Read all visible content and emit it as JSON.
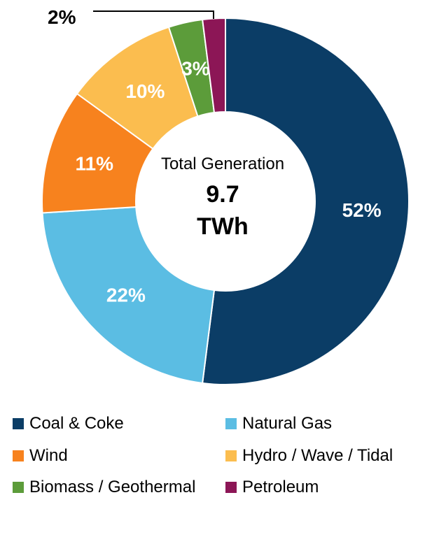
{
  "chart_data": {
    "type": "pie",
    "center_label": {
      "line1": "Total Generation",
      "value": "9.7",
      "unit": "TWh"
    },
    "slices": [
      {
        "name": "Coal & Coke",
        "value": 52,
        "label": "52%",
        "color": "#0b3d66"
      },
      {
        "name": "Natural Gas",
        "value": 22,
        "label": "22%",
        "color": "#5bbde3"
      },
      {
        "name": "Wind",
        "value": 11,
        "label": "11%",
        "color": "#f7821e"
      },
      {
        "name": "Hydro / Wave / Tidal",
        "value": 10,
        "label": "10%",
        "color": "#fbbd4f"
      },
      {
        "name": "Biomass / Geothermal",
        "value": 3,
        "label": "3%",
        "color": "#5c9c3a"
      },
      {
        "name": "Petroleum",
        "value": 2,
        "label": "2%",
        "color": "#8c1656"
      }
    ]
  }
}
